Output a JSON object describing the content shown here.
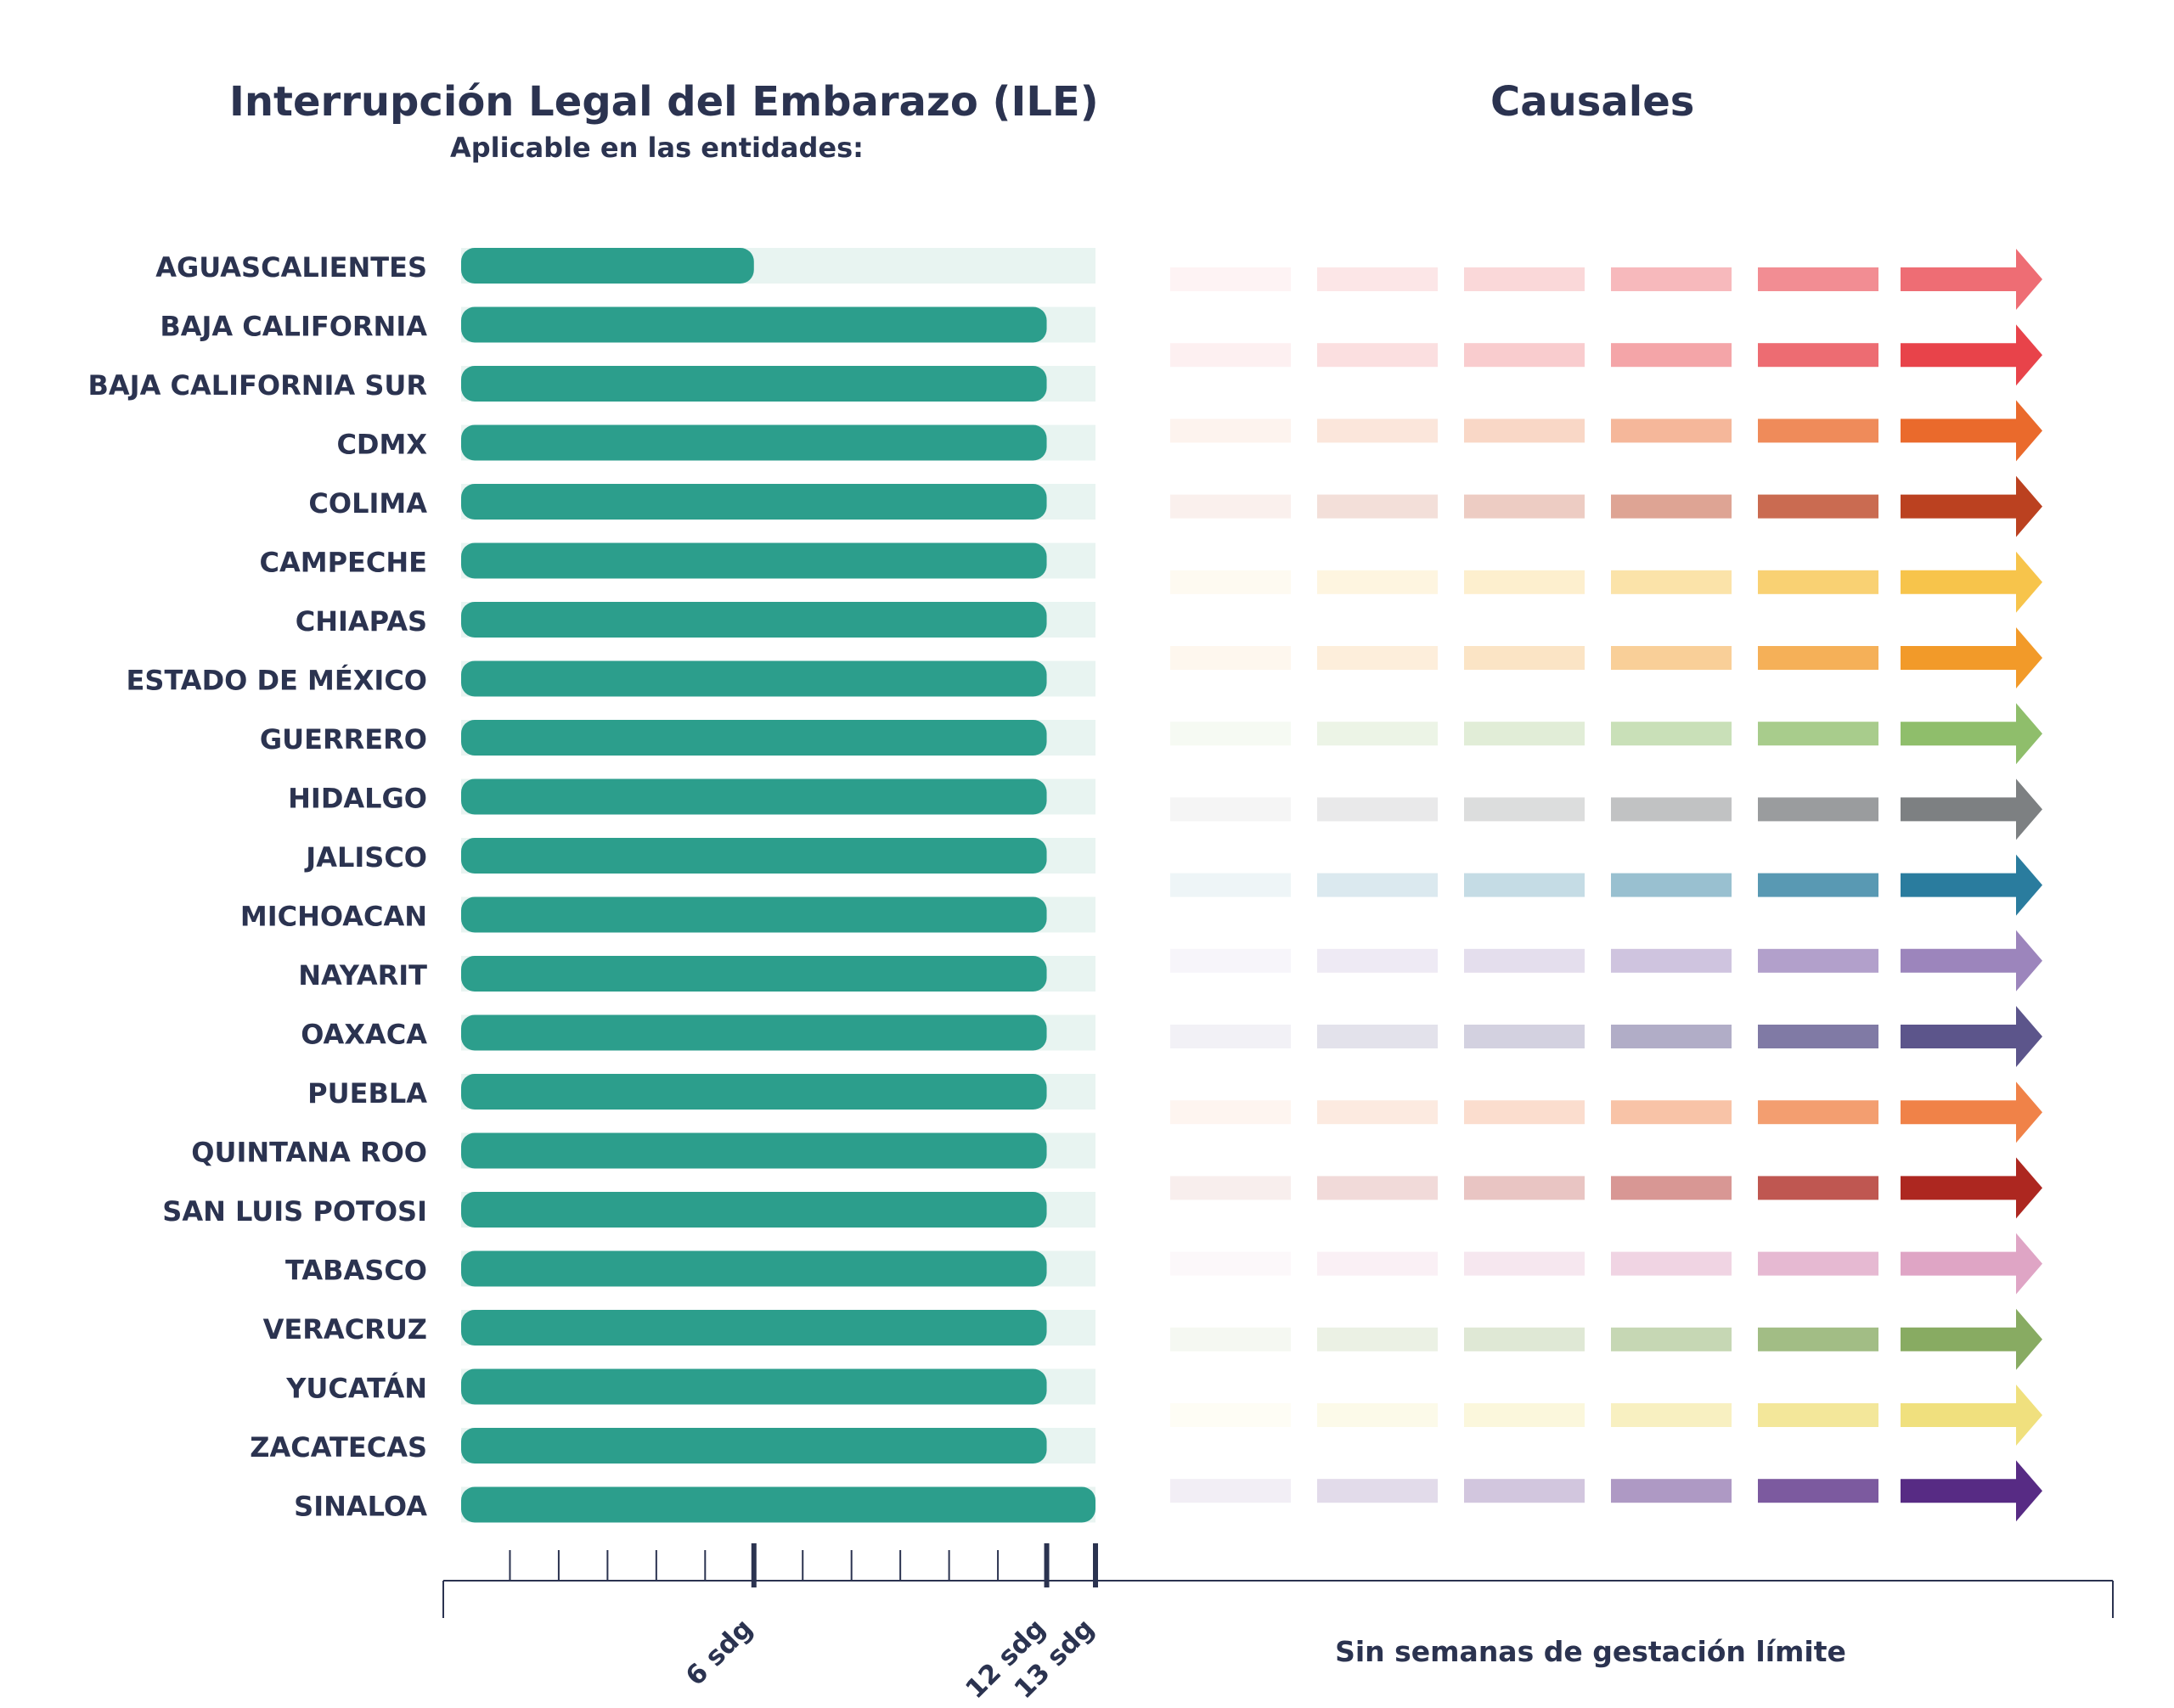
{
  "header": {
    "left_title": "Interrupción Legal del Embarazo (ILE)",
    "left_subtitle": "Aplicable en las entidades:",
    "right_title": "Causales"
  },
  "chart_data": [
    {
      "type": "bar",
      "orientation": "horizontal",
      "title": "Interrupción Legal del Embarazo (ILE)",
      "subtitle": "Aplicable en las entidades:",
      "unit": "sdg",
      "xlim": [
        0,
        13
      ],
      "x_ticks_labeled": [
        {
          "value": 6,
          "label": "6 sdg"
        },
        {
          "value": 12,
          "label": "12 sdg"
        },
        {
          "value": 13,
          "label": "13 sdg"
        }
      ],
      "x_ticks_minor": [
        1,
        2,
        3,
        4,
        5,
        7,
        8,
        9,
        10,
        11
      ],
      "categories": [
        "AGUASCALIENTES",
        "BAJA CALIFORNIA",
        "BAJA CALIFORNIA SUR",
        "CDMX",
        "COLIMA",
        "CAMPECHE",
        "CHIAPAS",
        "ESTADO DE MÉXICO",
        "GUERRERO",
        "HIDALGO",
        "JALISCO",
        "MICHOACAN",
        "NAYARIT",
        "OAXACA",
        "PUEBLA",
        "QUINTANA ROO",
        "SAN LUIS POTOSI",
        "TABASCO",
        "VERACRUZ",
        "YUCATÁN",
        "ZACATECAS",
        "SINALOA"
      ],
      "values": [
        6,
        12,
        12,
        12,
        12,
        12,
        12,
        12,
        12,
        12,
        12,
        12,
        12,
        12,
        12,
        12,
        12,
        12,
        12,
        12,
        12,
        13
      ],
      "bar_color": "#2c9e8c",
      "track_color": "#e8f4f1"
    },
    {
      "type": "arrows",
      "title": "Causales",
      "xlabel": "Sin semanas de gestación límite",
      "rows": [
        {
          "category": "AGUASCALIENTES",
          "color": "#ee6d74"
        },
        {
          "category": "BAJA CALIFORNIA",
          "color": "#e8434a"
        },
        {
          "category": "BAJA CALIFORNIA SUR",
          "color": "#ea6a2c"
        },
        {
          "category": "CDMX",
          "color": "#bb4120"
        },
        {
          "category": "COLIMA",
          "color": "#f7c44b"
        },
        {
          "category": "CAMPECHE",
          "color": "#f29a29"
        },
        {
          "category": "CHIAPAS",
          "color": "#8fbe6b"
        },
        {
          "category": "ESTADO DE MÉXICO",
          "color": "#7d8082"
        },
        {
          "category": "GUERRERO",
          "color": "#2a7c9e"
        },
        {
          "category": "HIDALGO",
          "color": "#9c85bc"
        },
        {
          "category": "JALISCO",
          "color": "#5c558b"
        },
        {
          "category": "MICHOACAN",
          "color": "#f08248"
        },
        {
          "category": "NAYARIT",
          "color": "#ad2720"
        },
        {
          "category": "OAXACA",
          "color": "#dfa5c5"
        },
        {
          "category": "PUEBLA",
          "color": "#88ab62"
        },
        {
          "category": "QUINTANA ROO",
          "color": "#f0e07e"
        },
        {
          "category": "SAN LUIS POTOSI",
          "color": "#572b84"
        }
      ]
    }
  ]
}
